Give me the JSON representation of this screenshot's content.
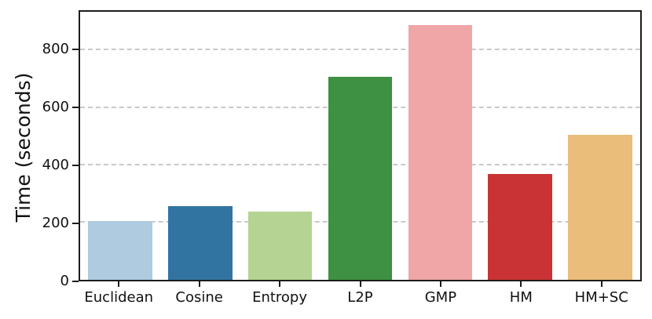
{
  "chart_data": {
    "type": "bar",
    "title": "",
    "xlabel": "",
    "ylabel": "Time (seconds)",
    "categories": [
      "Euclidean",
      "Cosine",
      "Entropy",
      "L2P",
      "GMP",
      "HM",
      "HM+SC"
    ],
    "values": [
      205,
      257,
      238,
      708,
      888,
      368,
      507
    ],
    "bar_colors": [
      "#aecbdf",
      "#3274a1",
      "#b5d392",
      "#3e9142",
      "#f0a5a6",
      "#ca3335",
      "#eabd7b"
    ],
    "ylim": [
      0,
      935
    ],
    "yticks": [
      0,
      200,
      400,
      600,
      800
    ],
    "grid": "horizontal dashed gridlines at y ticks",
    "gridline_color": "#c9c9c9",
    "spine_color": "#1c1c1c",
    "legend": "none"
  }
}
